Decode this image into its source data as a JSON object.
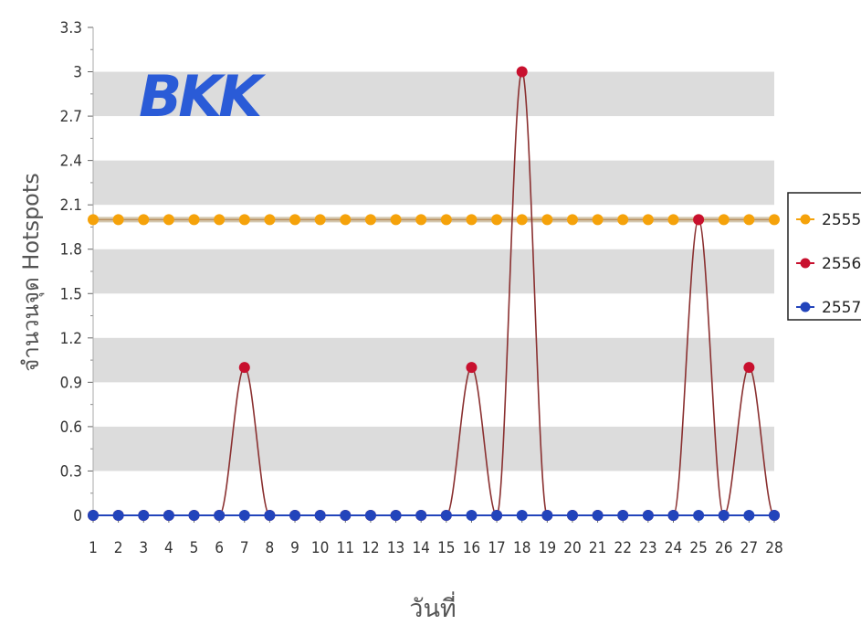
{
  "annotation": "BKK",
  "chart_data": {
    "type": "line",
    "title": "",
    "xlabel": "วันที่",
    "ylabel": "จำนวนจุด Hotspots",
    "x": [
      1,
      2,
      3,
      4,
      5,
      6,
      7,
      8,
      9,
      10,
      11,
      12,
      13,
      14,
      15,
      16,
      17,
      18,
      19,
      20,
      21,
      22,
      23,
      24,
      25,
      26,
      27,
      28
    ],
    "ylim": [
      0,
      3.3
    ],
    "yticks": [
      "0",
      "0.3",
      "0.6",
      "0.9",
      "1.2",
      "1.5",
      "1.8",
      "2.1",
      "2.4",
      "2.7",
      "3",
      "3.3"
    ],
    "grid": "alternating horizontal bands",
    "legend_position": "right",
    "series": [
      {
        "name": "2555",
        "color": "#f5a20a",
        "values": [
          2,
          2,
          2,
          2,
          2,
          2,
          2,
          2,
          2,
          2,
          2,
          2,
          2,
          2,
          2,
          2,
          2,
          2,
          2,
          2,
          2,
          2,
          2,
          2,
          2,
          2,
          2,
          2
        ]
      },
      {
        "name": "2556",
        "color": "#c8102e",
        "values": [
          0,
          0,
          0,
          0,
          0,
          0,
          1,
          0,
          0,
          0,
          0,
          0,
          0,
          0,
          0,
          1,
          0,
          3,
          0,
          0,
          0,
          0,
          0,
          0,
          2,
          0,
          1,
          0
        ]
      },
      {
        "name": "2557",
        "color": "#2244bb",
        "values": [
          0,
          0,
          0,
          0,
          0,
          0,
          0,
          0,
          0,
          0,
          0,
          0,
          0,
          0,
          0,
          0,
          0,
          0,
          0,
          0,
          0,
          0,
          0,
          0,
          0,
          0,
          0,
          0
        ]
      }
    ]
  }
}
